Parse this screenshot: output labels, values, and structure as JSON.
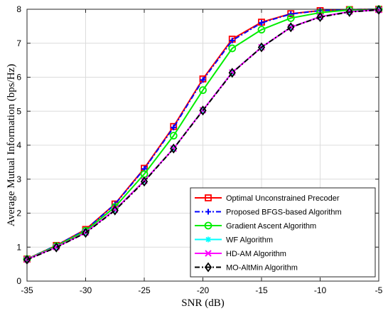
{
  "chart_data": {
    "type": "line",
    "xlabel": "SNR (dB)",
    "ylabel": "Average Mutual Information (bps/Hz)",
    "xlim": [
      -35,
      -5
    ],
    "ylim": [
      0,
      8
    ],
    "xticks": [
      -35,
      -30,
      -25,
      -20,
      -15,
      -10,
      -5
    ],
    "yticks": [
      0,
      1,
      2,
      3,
      4,
      5,
      6,
      7,
      8
    ],
    "grid": true,
    "legend_position": "bottom-right",
    "x": [
      -35,
      -32.5,
      -30,
      -27.5,
      -25,
      -22.5,
      -20,
      -17.5,
      -15,
      -12.5,
      -10,
      -7.5,
      -5
    ],
    "series": [
      {
        "name": "Optimal Unconstrained Precoder",
        "color": "#ff0000",
        "marker": "square",
        "dash": "solid",
        "values": [
          0.65,
          1.05,
          1.52,
          2.27,
          3.32,
          4.55,
          5.95,
          7.12,
          7.62,
          7.87,
          7.96,
          7.99,
          8.0
        ]
      },
      {
        "name": "Proposed BFGS-based Algorithm",
        "color": "#0000ff",
        "marker": "plus",
        "dash": "dashdot",
        "values": [
          0.65,
          1.05,
          1.51,
          2.26,
          3.3,
          4.52,
          5.92,
          7.08,
          7.6,
          7.86,
          7.96,
          7.99,
          8.0
        ]
      },
      {
        "name": "Gradient Ascent Algorithm",
        "color": "#00ee00",
        "marker": "circle",
        "dash": "solid",
        "values": [
          0.65,
          1.03,
          1.48,
          2.18,
          3.15,
          4.28,
          5.62,
          6.85,
          7.4,
          7.74,
          7.9,
          7.98,
          8.0
        ]
      },
      {
        "name": "WF Algorithm",
        "color": "#00ffff",
        "marker": "asterisk",
        "dash": "solid",
        "values": [
          0.64,
          1.0,
          1.43,
          2.1,
          2.95,
          3.9,
          5.03,
          6.14,
          6.88,
          7.47,
          7.78,
          7.93,
          7.98
        ]
      },
      {
        "name": "HD-AM Algorithm",
        "color": "#ff00ff",
        "marker": "x",
        "dash": "solid",
        "values": [
          0.64,
          1.0,
          1.43,
          2.1,
          2.95,
          3.9,
          5.03,
          6.14,
          6.88,
          7.47,
          7.78,
          7.93,
          7.98
        ]
      },
      {
        "name": "MO-AltMin Algorithm",
        "color": "#000000",
        "marker": "diamond",
        "dash": "dashdot",
        "values": [
          0.63,
          0.99,
          1.42,
          2.08,
          2.93,
          3.9,
          5.02,
          6.13,
          6.88,
          7.47,
          7.77,
          7.92,
          7.98
        ]
      }
    ]
  }
}
